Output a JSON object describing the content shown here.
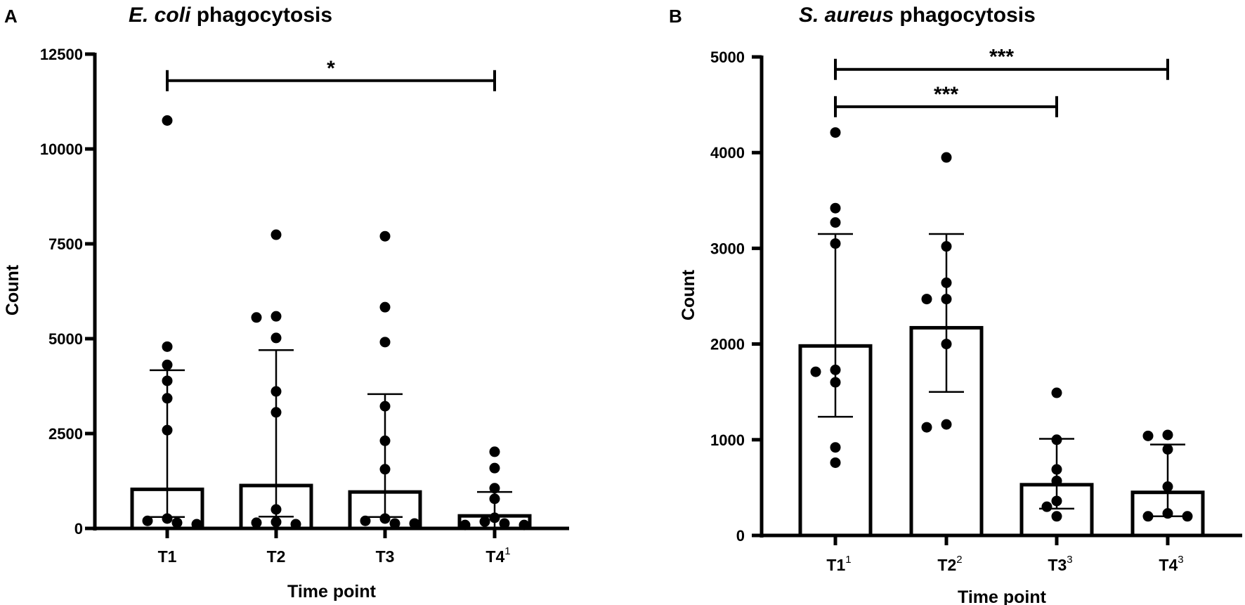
{
  "figure": {
    "panels": [
      {
        "letter": "A",
        "title_italic": "E. coli",
        "title_rest": " phagocytosis"
      },
      {
        "letter": "B",
        "title_italic": "S. aureus",
        "title_rest": " phagocytosis"
      }
    ]
  },
  "chart_data": [
    {
      "type": "bar",
      "panel": "A",
      "title": "E. coli phagocytosis",
      "xlabel": "Time point",
      "ylabel": "Count",
      "ylim": [
        0,
        12500
      ],
      "yticks": [
        0,
        2500,
        5000,
        7500,
        10000,
        12500
      ],
      "grid": false,
      "categories": [
        "T1",
        "T2",
        "T3",
        "T4"
      ],
      "category_superscripts": [
        "",
        "",
        "",
        "1"
      ],
      "bar_values": [
        1030,
        1130,
        960,
        330
      ],
      "error_upper": [
        4170,
        4700,
        3540,
        960
      ],
      "error_lower": [
        300,
        310,
        300,
        0
      ],
      "points": [
        [
          10750,
          4790,
          4310,
          3890,
          3430,
          2590,
          260,
          200,
          150,
          110
        ],
        [
          7740,
          5590,
          5560,
          5020,
          3610,
          3060,
          500,
          170,
          150,
          110
        ],
        [
          7700,
          5830,
          4910,
          3220,
          2310,
          1560,
          260,
          200,
          130,
          130
        ],
        [
          2020,
          1590,
          1060,
          780,
          280,
          180,
          130,
          90,
          90
        ]
      ],
      "significance": [
        {
          "from": "T1",
          "to": "T4",
          "label": "*",
          "y": 11800
        }
      ],
      "series_style": {
        "bar_fill": "#ffffff",
        "bar_stroke": "#000000",
        "point_color": "#000000"
      }
    },
    {
      "type": "bar",
      "panel": "B",
      "title": "S. aureus phagocytosis",
      "xlabel": "Time point",
      "ylabel": "Count",
      "ylim": [
        0,
        5000
      ],
      "yticks": [
        0,
        1000,
        2000,
        3000,
        4000,
        5000
      ],
      "grid": false,
      "categories": [
        "T1",
        "T2",
        "T3",
        "T4"
      ],
      "category_superscripts": [
        "1",
        "2",
        "3",
        "3"
      ],
      "bar_values": [
        1980,
        2170,
        530,
        450
      ],
      "error_upper": [
        3150,
        3150,
        1010,
        950
      ],
      "error_lower": [
        1240,
        1500,
        280,
        200
      ],
      "points": [
        [
          4210,
          3420,
          3270,
          3050,
          1730,
          1710,
          1600,
          920,
          760
        ],
        [
          3950,
          3020,
          2640,
          2470,
          2470,
          2000,
          1160,
          1130
        ],
        [
          1490,
          1000,
          690,
          570,
          360,
          300,
          200
        ],
        [
          1050,
          1040,
          900,
          510,
          230,
          200,
          200
        ]
      ],
      "significance": [
        {
          "from": "T1",
          "to": "T4",
          "label": "***",
          "y": 4870
        },
        {
          "from": "T1",
          "to": "T3",
          "label": "***",
          "y": 4480
        }
      ],
      "series_style": {
        "bar_fill": "#ffffff",
        "bar_stroke": "#000000",
        "point_color": "#000000"
      }
    }
  ]
}
